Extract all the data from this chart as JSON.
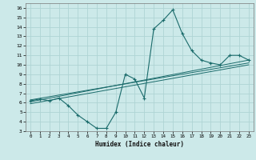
{
  "xlabel": "Humidex (Indice chaleur)",
  "bg_color": "#cce9e9",
  "grid_color": "#afd4d4",
  "line_color": "#1a6b6b",
  "xlim": [
    -0.5,
    23.5
  ],
  "ylim": [
    3,
    16.5
  ],
  "xticks": [
    0,
    1,
    2,
    3,
    4,
    5,
    6,
    7,
    8,
    9,
    10,
    11,
    12,
    13,
    14,
    15,
    16,
    17,
    18,
    19,
    20,
    21,
    22,
    23
  ],
  "yticks": [
    3,
    4,
    5,
    6,
    7,
    8,
    9,
    10,
    11,
    12,
    13,
    14,
    15,
    16
  ],
  "main_x": [
    0,
    1,
    2,
    3,
    4,
    5,
    6,
    7,
    8,
    9,
    10,
    11,
    12,
    13,
    14,
    15,
    16,
    17,
    18,
    19,
    20,
    21,
    22,
    23
  ],
  "main_y": [
    6.2,
    6.4,
    6.2,
    6.5,
    5.7,
    4.7,
    4.0,
    3.3,
    3.3,
    5.0,
    9.0,
    8.5,
    6.5,
    13.8,
    14.7,
    15.8,
    13.3,
    11.5,
    10.5,
    10.2,
    10.0,
    11.0,
    11.0,
    10.5
  ],
  "line1_x": [
    0,
    23
  ],
  "line1_y": [
    6.1,
    10.5
  ],
  "line2_x": [
    0,
    23
  ],
  "line2_y": [
    6.3,
    10.2
  ],
  "line3_x": [
    0,
    23
  ],
  "line3_y": [
    5.9,
    10.0
  ]
}
